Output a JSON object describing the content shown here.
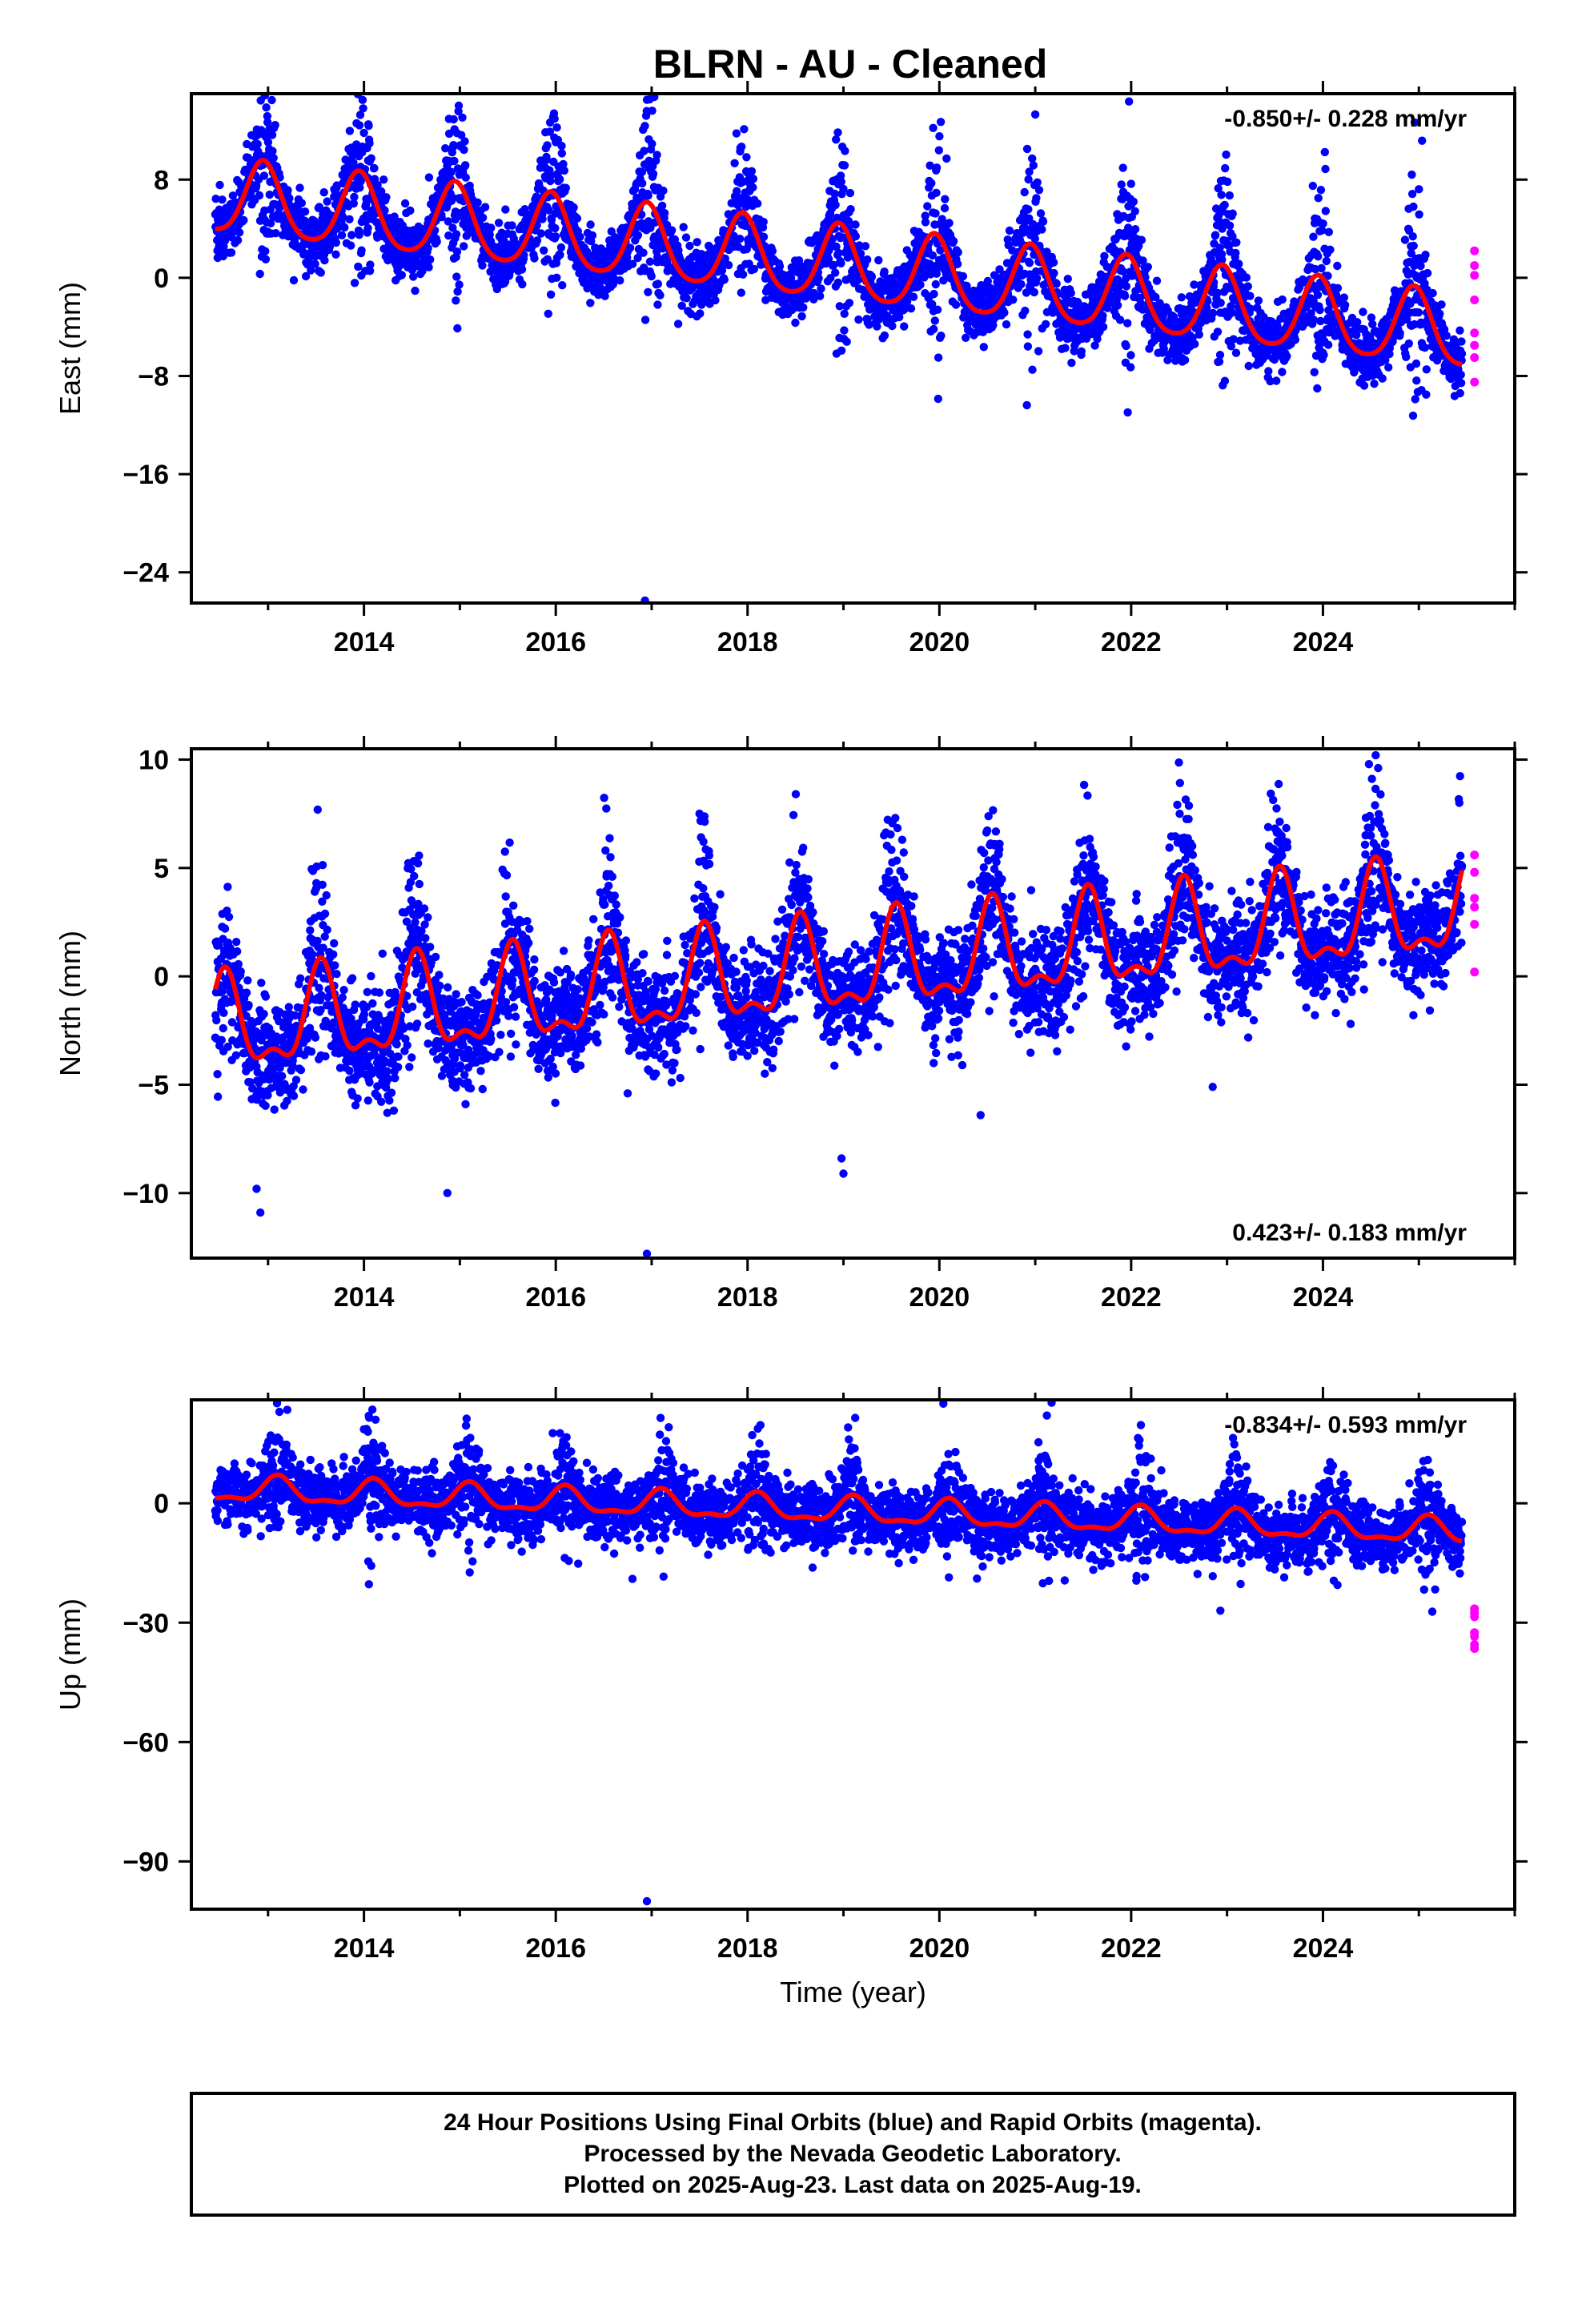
{
  "title": "BLRN  - AU - Cleaned",
  "colors": {
    "final_points": "#0000ff",
    "rapid_points": "#ff00ff",
    "model_line": "#ff0000",
    "frame": "#000000"
  },
  "chart_data": [
    {
      "type": "scatter",
      "component": "east",
      "ylabel": "East (mm)",
      "rate_label": "-0.850+/- 0.228 mm/yr",
      "rate_placement": "top-right",
      "xlim": [
        2012.2,
        2026.0
      ],
      "ylim": [
        -26.5,
        15
      ],
      "x_ticks": [
        2014,
        2016,
        2018,
        2020,
        2022,
        2024
      ],
      "x_tick_labels": [
        "2014",
        "2016",
        "2018",
        "2020",
        "2022",
        "2024"
      ],
      "y_ticks": [
        8,
        0,
        -8,
        -16,
        -24
      ],
      "y_tick_labels": [
        "8",
        "0",
        "−8",
        "−16",
        "−24"
      ],
      "model": {
        "t0": 2012.45,
        "intercept": 6.5,
        "rate": -0.85,
        "annual_amp": 3.0,
        "annual_phase_year": 2012.95,
        "semiannual_amp": 0.5
      },
      "scatter": {
        "sigma": 1.6,
        "seasonal_excess_amp": 3.2,
        "peak_year_frac": 0.97
      },
      "outliers": [
        {
          "x": 2016.93,
          "y": -26.3
        }
      ],
      "series": [
        {
          "name": "Final Orbits",
          "x_range": [
            2012.45,
            2025.45
          ]
        },
        {
          "name": "Rapid Orbits",
          "points": [
            {
              "x": 2025.58,
              "y": 2.2
            },
            {
              "x": 2025.58,
              "y": 1.0
            },
            {
              "x": 2025.58,
              "y": 0.2
            },
            {
              "x": 2025.58,
              "y": -1.8
            },
            {
              "x": 2025.58,
              "y": -4.5
            },
            {
              "x": 2025.58,
              "y": -5.5
            },
            {
              "x": 2025.58,
              "y": -6.5
            },
            {
              "x": 2025.58,
              "y": -8.5
            }
          ]
        }
      ]
    },
    {
      "type": "scatter",
      "component": "north",
      "ylabel": "North (mm)",
      "rate_label": "0.423+/- 0.183 mm/yr",
      "rate_placement": "bottom-right",
      "xlim": [
        2012.2,
        2026.0
      ],
      "ylim": [
        -13.0,
        10.5
      ],
      "x_ticks": [
        2014,
        2016,
        2018,
        2020,
        2022,
        2024
      ],
      "x_tick_labels": [
        "2014",
        "2016",
        "2018",
        "2020",
        "2022",
        "2024"
      ],
      "y_ticks": [
        10,
        5,
        0,
        -5,
        -10
      ],
      "y_tick_labels": [
        "10",
        "5",
        "0",
        "−5",
        "−10"
      ],
      "model": {
        "t0": 2012.45,
        "intercept": -2.5,
        "rate": 0.423,
        "annual_amp": 2.0,
        "annual_phase_year": 2012.55,
        "semiannual_amp": 0.9
      },
      "scatter": {
        "sigma": 1.5,
        "seasonal_excess_amp": 1.0,
        "peak_year_frac": 0.5
      },
      "outliers": [
        {
          "x": 2012.88,
          "y": -9.8
        },
        {
          "x": 2012.92,
          "y": -10.9
        },
        {
          "x": 2014.87,
          "y": -10.0
        },
        {
          "x": 2016.75,
          "y": -5.4
        },
        {
          "x": 2016.95,
          "y": -12.8
        },
        {
          "x": 2018.98,
          "y": -8.4
        },
        {
          "x": 2019.0,
          "y": -9.1
        },
        {
          "x": 2020.43,
          "y": -6.4
        },
        {
          "x": 2022.85,
          "y": -5.1
        },
        {
          "x": 2024.55,
          "y": 10.2
        }
      ],
      "series": [
        {
          "name": "Final Orbits",
          "x_range": [
            2012.45,
            2025.45
          ]
        },
        {
          "name": "Rapid Orbits",
          "points": [
            {
              "x": 2025.58,
              "y": 5.6
            },
            {
              "x": 2025.58,
              "y": 4.8
            },
            {
              "x": 2025.58,
              "y": 3.6
            },
            {
              "x": 2025.58,
              "y": 3.2
            },
            {
              "x": 2025.58,
              "y": 2.4
            },
            {
              "x": 2025.58,
              "y": 0.2
            }
          ]
        }
      ]
    },
    {
      "type": "scatter",
      "component": "up",
      "ylabel": "Up (mm)",
      "rate_label": "-0.834+/- 0.593 mm/yr",
      "rate_placement": "top-right",
      "xlim": [
        2012.2,
        2026.0
      ],
      "ylim": [
        -102,
        26
      ],
      "x_ticks": [
        2014,
        2016,
        2018,
        2020,
        2022,
        2024
      ],
      "x_tick_labels": [
        "2014",
        "2016",
        "2018",
        "2020",
        "2022",
        "2024"
      ],
      "y_ticks": [
        0,
        -30,
        -60,
        -90
      ],
      "y_tick_labels": [
        "0",
        "−30",
        "−60",
        "−90"
      ],
      "xlabel": "Time (year)",
      "model": {
        "t0": 2012.45,
        "intercept": 3.5,
        "rate": -0.834,
        "annual_amp": 3.0,
        "annual_phase_year": 2013.1,
        "semiannual_amp": 1.2
      },
      "scatter": {
        "sigma": 4.8,
        "seasonal_excess_amp": 1.5,
        "peak_year_frac": 0.1
      },
      "outliers": [
        {
          "x": 2013.2,
          "y": 23.5
        },
        {
          "x": 2014.05,
          "y": 22.0
        },
        {
          "x": 2016.8,
          "y": -19.0
        },
        {
          "x": 2016.95,
          "y": -100.0
        },
        {
          "x": 2022.93,
          "y": -27.0
        }
      ],
      "series": [
        {
          "name": "Final Orbits",
          "x_range": [
            2012.45,
            2025.45
          ]
        },
        {
          "name": "Rapid Orbits",
          "points": [
            {
              "x": 2025.58,
              "y": -26.5
            },
            {
              "x": 2025.58,
              "y": -27.5
            },
            {
              "x": 2025.58,
              "y": -28.5
            },
            {
              "x": 2025.58,
              "y": -32.5
            },
            {
              "x": 2025.58,
              "y": -33.5
            },
            {
              "x": 2025.58,
              "y": -35.5
            },
            {
              "x": 2025.58,
              "y": -36.5
            }
          ]
        }
      ]
    }
  ],
  "footer": {
    "line1": "24 Hour Positions Using Final Orbits (blue) and Rapid Orbits (magenta).",
    "line2": "Processed by the Nevada Geodetic Laboratory.",
    "line3": "Plotted on 2025-Aug-23. Last data on 2025-Aug-19."
  }
}
